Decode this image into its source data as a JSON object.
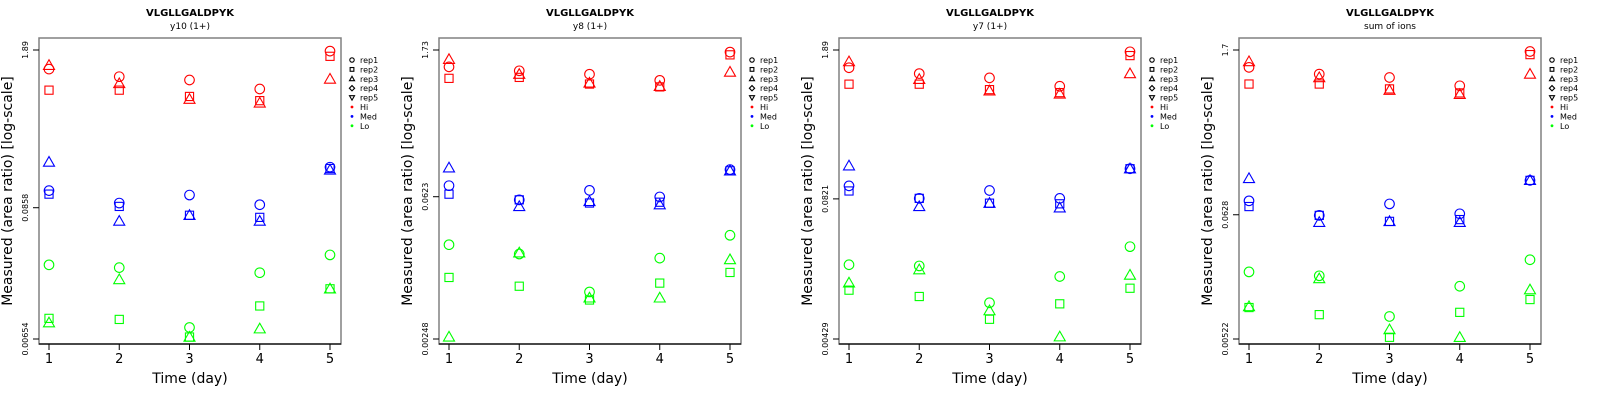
{
  "chart_data": [
    {
      "type": "scatter",
      "title": "VLGLLGALDPYK",
      "subtitle": "y10 (1+)",
      "xlabel": "Time (day)",
      "ylabel": "Measured (area ratio) [log-scale]",
      "yscale": "log",
      "ylim": [
        0.00654,
        1.89
      ],
      "yticks": [
        1.89,
        0.0858,
        0.00654
      ],
      "ytick_labels": [
        "1.89",
        "0.0858",
        "0.00654"
      ],
      "xticks": [
        1,
        2,
        3,
        4,
        5
      ],
      "xlim": [
        0.85,
        5.15
      ],
      "legend": {
        "position": "right",
        "items": [
          "rep1",
          "rep2",
          "rep3",
          "rep4",
          "rep5",
          "Hi",
          "Med",
          "Lo"
        ]
      },
      "series": [
        {
          "name": "Hi rep1",
          "group": "Hi",
          "rep": "rep1",
          "x": [
            1,
            2,
            3,
            4,
            5
          ],
          "y": [
            1.3,
            1.12,
            1.05,
            0.88,
            1.85
          ]
        },
        {
          "name": "Hi rep2",
          "group": "Hi",
          "rep": "rep2",
          "x": [
            1,
            2,
            3,
            4,
            5
          ],
          "y": [
            0.86,
            0.86,
            0.76,
            0.7,
            1.67
          ]
        },
        {
          "name": "Hi rep3",
          "group": "Hi",
          "rep": "rep3",
          "x": [
            1,
            2,
            3,
            4,
            5
          ],
          "y": [
            1.4,
            0.98,
            0.72,
            0.67,
            1.07
          ]
        },
        {
          "name": "Med rep1",
          "group": "Med",
          "rep": "rep1",
          "x": [
            1,
            2,
            3,
            4,
            5
          ],
          "y": [
            0.12,
            0.094,
            0.11,
            0.091,
            0.19
          ]
        },
        {
          "name": "Med rep2",
          "group": "Med",
          "rep": "rep2",
          "x": [
            1,
            2,
            3,
            4,
            5
          ],
          "y": [
            0.112,
            0.088,
            0.074,
            0.071,
            0.185
          ]
        },
        {
          "name": "Med rep3",
          "group": "Med",
          "rep": "rep3",
          "x": [
            1,
            2,
            3,
            4,
            5
          ],
          "y": [
            0.21,
            0.066,
            0.074,
            0.066,
            0.18
          ]
        },
        {
          "name": "Lo rep1",
          "group": "Lo",
          "rep": "rep1",
          "x": [
            1,
            2,
            3,
            4,
            5
          ],
          "y": [
            0.028,
            0.0265,
            0.0082,
            0.024,
            0.034
          ]
        },
        {
          "name": "Lo rep2",
          "group": "Lo",
          "rep": "rep2",
          "x": [
            1,
            2,
            3,
            4,
            5
          ],
          "y": [
            0.0098,
            0.0096,
            0.0068,
            0.0125,
            0.0175
          ]
        },
        {
          "name": "Lo rep3",
          "group": "Lo",
          "rep": "rep3",
          "x": [
            1,
            2,
            3,
            4,
            5
          ],
          "y": [
            0.009,
            0.021,
            0.0068,
            0.008,
            0.0175
          ]
        }
      ]
    },
    {
      "type": "scatter",
      "title": "VLGLLGALDPYK",
      "subtitle": "y8 (1+)",
      "xlabel": "Time (day)",
      "ylabel": "Measured (area ratio) [log-scale]",
      "yscale": "log",
      "ylim": [
        0.00248,
        1.73
      ],
      "yticks": [
        1.73,
        0.0623,
        0.00248
      ],
      "ytick_labels": [
        "1.73",
        "0.0623",
        "0.00248"
      ],
      "xticks": [
        1,
        2,
        3,
        4,
        5
      ],
      "xlim": [
        0.85,
        5.15
      ],
      "legend": {
        "position": "right",
        "items": [
          "rep1",
          "rep2",
          "rep3",
          "rep4",
          "rep5",
          "Hi",
          "Med",
          "Lo"
        ]
      },
      "series": [
        {
          "name": "Hi rep1",
          "group": "Hi",
          "rep": "rep1",
          "x": [
            1,
            2,
            3,
            4,
            5
          ],
          "y": [
            1.18,
            1.08,
            1.0,
            0.87,
            1.65
          ]
        },
        {
          "name": "Hi rep2",
          "group": "Hi",
          "rep": "rep2",
          "x": [
            1,
            2,
            3,
            4,
            5
          ],
          "y": [
            0.91,
            0.93,
            0.8,
            0.75,
            1.55
          ]
        },
        {
          "name": "Hi rep3",
          "group": "Hi",
          "rep": "rep3",
          "x": [
            1,
            2,
            3,
            4,
            5
          ],
          "y": [
            1.4,
            1.0,
            0.82,
            0.76,
            1.05
          ]
        },
        {
          "name": "Med rep1",
          "group": "Med",
          "rep": "rep1",
          "x": [
            1,
            2,
            3,
            4,
            5
          ],
          "y": [
            0.08,
            0.058,
            0.072,
            0.062,
            0.115
          ]
        },
        {
          "name": "Med rep2",
          "group": "Med",
          "rep": "rep2",
          "x": [
            1,
            2,
            3,
            4,
            5
          ],
          "y": [
            0.066,
            0.058,
            0.054,
            0.055,
            0.112
          ]
        },
        {
          "name": "Med rep3",
          "group": "Med",
          "rep": "rep3",
          "x": [
            1,
            2,
            3,
            4,
            5
          ],
          "y": [
            0.12,
            0.05,
            0.056,
            0.052,
            0.112
          ]
        },
        {
          "name": "Lo rep1",
          "group": "Lo",
          "rep": "rep1",
          "x": [
            1,
            2,
            3,
            4,
            5
          ],
          "y": [
            0.021,
            0.017,
            0.0072,
            0.0155,
            0.026
          ]
        },
        {
          "name": "Lo rep2",
          "group": "Lo",
          "rep": "rep2",
          "x": [
            1,
            2,
            3,
            4,
            5
          ],
          "y": [
            0.01,
            0.0082,
            0.006,
            0.0088,
            0.0112
          ]
        },
        {
          "name": "Lo rep3",
          "group": "Lo",
          "rep": "rep3",
          "x": [
            1,
            2,
            3,
            4,
            5
          ],
          "y": [
            0.0026,
            0.0175,
            0.0063,
            0.0063,
            0.015
          ]
        }
      ]
    },
    {
      "type": "scatter",
      "title": "VLGLLGALDPYK",
      "subtitle": "y7 (1+)",
      "xlabel": "Time (day)",
      "ylabel": "Measured (area ratio) [log-scale]",
      "yscale": "log",
      "ylim": [
        0.00429,
        1.89
      ],
      "yticks": [
        1.89,
        0.0821,
        0.00429
      ],
      "ytick_labels": [
        "1.89",
        "0.0821",
        "0.00429"
      ],
      "xticks": [
        1,
        2,
        3,
        4,
        5
      ],
      "xlim": [
        0.85,
        5.15
      ],
      "legend": {
        "position": "right",
        "items": [
          "rep1",
          "rep2",
          "rep3",
          "rep4",
          "rep5",
          "Hi",
          "Med",
          "Lo"
        ]
      },
      "series": [
        {
          "name": "Hi rep1",
          "group": "Hi",
          "rep": "rep1",
          "x": [
            1,
            2,
            3,
            4,
            5
          ],
          "y": [
            1.3,
            1.15,
            1.05,
            0.88,
            1.82
          ]
        },
        {
          "name": "Hi rep2",
          "group": "Hi",
          "rep": "rep2",
          "x": [
            1,
            2,
            3,
            4,
            5
          ],
          "y": [
            0.92,
            0.92,
            0.82,
            0.77,
            1.68
          ]
        },
        {
          "name": "Hi rep3",
          "group": "Hi",
          "rep": "rep3",
          "x": [
            1,
            2,
            3,
            4,
            5
          ],
          "y": [
            1.48,
            1.02,
            0.8,
            0.75,
            1.15
          ]
        },
        {
          "name": "Med rep1",
          "group": "Med",
          "rep": "rep1",
          "x": [
            1,
            2,
            3,
            4,
            5
          ],
          "y": [
            0.108,
            0.083,
            0.098,
            0.083,
            0.155
          ]
        },
        {
          "name": "Med rep2",
          "group": "Med",
          "rep": "rep2",
          "x": [
            1,
            2,
            3,
            4,
            5
          ],
          "y": [
            0.097,
            0.083,
            0.075,
            0.074,
            0.155
          ]
        },
        {
          "name": "Med rep3",
          "group": "Med",
          "rep": "rep3",
          "x": [
            1,
            2,
            3,
            4,
            5
          ],
          "y": [
            0.165,
            0.07,
            0.075,
            0.068,
            0.155
          ]
        },
        {
          "name": "Lo rep1",
          "group": "Lo",
          "rep": "rep1",
          "x": [
            1,
            2,
            3,
            4,
            5
          ],
          "y": [
            0.0205,
            0.02,
            0.0092,
            0.016,
            0.03
          ]
        },
        {
          "name": "Lo rep2",
          "group": "Lo",
          "rep": "rep2",
          "x": [
            1,
            2,
            3,
            4,
            5
          ],
          "y": [
            0.012,
            0.0105,
            0.0065,
            0.009,
            0.0125
          ]
        },
        {
          "name": "Lo rep3",
          "group": "Lo",
          "rep": "rep3",
          "x": [
            1,
            2,
            3,
            4,
            5
          ],
          "y": [
            0.014,
            0.0185,
            0.0078,
            0.0045,
            0.0165
          ]
        }
      ]
    },
    {
      "type": "scatter",
      "title": "VLGLLGALDPYK",
      "subtitle": "sum of ions",
      "xlabel": "Time (day)",
      "ylabel": "Measured (area ratio) [log-scale]",
      "yscale": "log",
      "ylim": [
        0.00522,
        1.7
      ],
      "yticks": [
        1.7,
        0.0628,
        0.00522
      ],
      "ytick_labels": [
        "1.7",
        "0.0628",
        "0.00522"
      ],
      "xticks": [
        1,
        2,
        3,
        4,
        5
      ],
      "xlim": [
        0.85,
        5.15
      ],
      "legend": {
        "position": "right",
        "items": [
          "rep1",
          "rep2",
          "rep3",
          "rep4",
          "rep5",
          "Hi",
          "Med",
          "Lo"
        ]
      },
      "series": [
        {
          "name": "Hi rep1",
          "group": "Hi",
          "rep": "rep1",
          "x": [
            1,
            2,
            3,
            4,
            5
          ],
          "y": [
            1.2,
            1.05,
            0.98,
            0.83,
            1.65
          ]
        },
        {
          "name": "Hi rep2",
          "group": "Hi",
          "rep": "rep2",
          "x": [
            1,
            2,
            3,
            4,
            5
          ],
          "y": [
            0.86,
            0.86,
            0.78,
            0.72,
            1.55
          ]
        },
        {
          "name": "Hi rep3",
          "group": "Hi",
          "rep": "rep3",
          "x": [
            1,
            2,
            3,
            4,
            5
          ],
          "y": [
            1.35,
            0.98,
            0.76,
            0.7,
            1.05
          ]
        },
        {
          "name": "Med rep1",
          "group": "Med",
          "rep": "rep1",
          "x": [
            1,
            2,
            3,
            4,
            5
          ],
          "y": [
            0.083,
            0.062,
            0.078,
            0.064,
            0.125
          ]
        },
        {
          "name": "Med rep2",
          "group": "Med",
          "rep": "rep2",
          "x": [
            1,
            2,
            3,
            4,
            5
          ],
          "y": [
            0.074,
            0.062,
            0.055,
            0.057,
            0.125
          ]
        },
        {
          "name": "Med rep3",
          "group": "Med",
          "rep": "rep3",
          "x": [
            1,
            2,
            3,
            4,
            5
          ],
          "y": [
            0.13,
            0.054,
            0.055,
            0.054,
            0.125
          ]
        },
        {
          "name": "Lo rep1",
          "group": "Lo",
          "rep": "rep1",
          "x": [
            1,
            2,
            3,
            4,
            5
          ],
          "y": [
            0.02,
            0.0185,
            0.0082,
            0.015,
            0.0255
          ]
        },
        {
          "name": "Lo rep2",
          "group": "Lo",
          "rep": "rep2",
          "x": [
            1,
            2,
            3,
            4,
            5
          ],
          "y": [
            0.0098,
            0.0085,
            0.0054,
            0.0089,
            0.0115
          ]
        },
        {
          "name": "Lo rep3",
          "group": "Lo",
          "rep": "rep3",
          "x": [
            1,
            2,
            3,
            4,
            5
          ],
          "y": [
            0.01,
            0.0175,
            0.0063,
            0.0054,
            0.014
          ]
        }
      ]
    }
  ],
  "colors": {
    "Hi": "#ff0000",
    "Med": "#0000ff",
    "Lo": "#00ff00",
    "axis": "#000000",
    "frame": "#808080"
  },
  "legend_symbols": {
    "rep1": "circle",
    "rep2": "square",
    "rep3": "triangle-up",
    "rep4": "diamond",
    "rep5": "triangle-down",
    "Hi": "dot",
    "Med": "dot",
    "Lo": "dot"
  }
}
